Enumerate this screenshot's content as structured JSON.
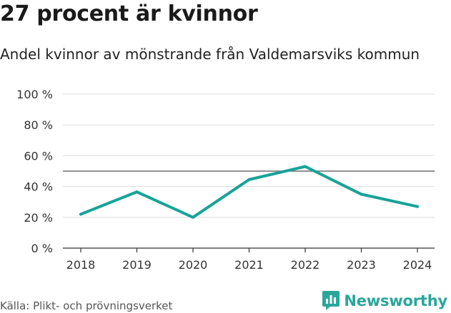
{
  "header": {
    "title": "27 procent är kvinnor",
    "subtitle": "Andel kvinnor av mönstrande från Valdemarsviks kommun"
  },
  "footer": {
    "source": "Källa: Plikt- och prövningsverket",
    "brand": "Newsworthy"
  },
  "colors": {
    "line": "#17a398",
    "reference": "#6b6b6b",
    "grid": "#dddddd",
    "brand": "#2aa69a"
  },
  "chart_data": {
    "type": "line",
    "title": "27 procent är kvinnor",
    "subtitle": "Andel kvinnor av mönstrande från Valdemarsviks kommun",
    "xlabel": "",
    "ylabel": "",
    "x": [
      "2018",
      "2019",
      "2020",
      "2021",
      "2022",
      "2023",
      "2024"
    ],
    "series": [
      {
        "values": [
          22,
          36.5,
          20,
          44.5,
          53,
          35,
          27
        ]
      }
    ],
    "reference_line": 50,
    "ylim": [
      0,
      100
    ],
    "yticks": [
      0,
      20,
      40,
      60,
      80,
      100
    ],
    "ytick_labels": [
      "0 %",
      "20 %",
      "40 %",
      "60 %",
      "80 %",
      "100 %"
    ],
    "grid": true,
    "legend": "none"
  }
}
